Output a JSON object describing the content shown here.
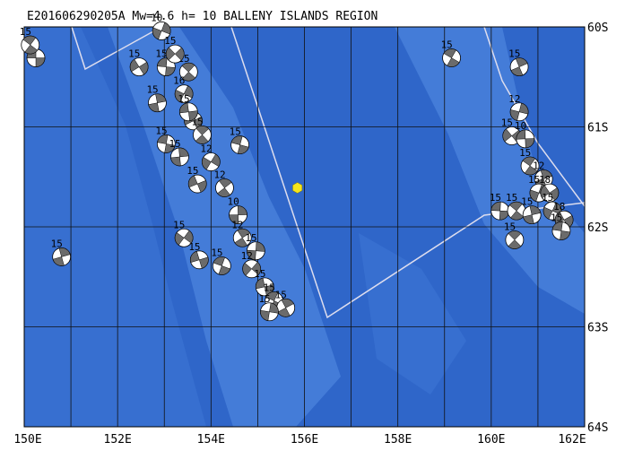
{
  "map": {
    "title": "E201606290205A Mw=4.6 h= 10 BALLENY ISLANDS REGION",
    "lonlim": [
      150,
      162
    ],
    "latlim": [
      -64,
      -60
    ],
    "xticks": [
      {
        "value": 150,
        "label": "150E"
      },
      {
        "value": 152,
        "label": "152E"
      },
      {
        "value": 154,
        "label": "154E"
      },
      {
        "value": 156,
        "label": "156E"
      },
      {
        "value": 158,
        "label": "158E"
      },
      {
        "value": 160,
        "label": "160E"
      },
      {
        "value": 162,
        "label": "162E"
      }
    ],
    "minor_xticks": [
      151,
      153,
      155,
      157,
      159,
      161
    ],
    "yticks": [
      {
        "value": -60,
        "label": "60S"
      },
      {
        "value": -61,
        "label": "61S"
      },
      {
        "value": -62,
        "label": "62S"
      },
      {
        "value": -63,
        "label": "63S"
      },
      {
        "value": -64,
        "label": "64S"
      }
    ],
    "event": {
      "lon": 155.85,
      "lat": -61.61,
      "color": "#f5e51b"
    },
    "mechanisms": [
      {
        "lon": 150.25,
        "lat": -60.31,
        "depth": 15
      },
      {
        "lon": 150.13,
        "lat": -60.18,
        "depth": 15
      },
      {
        "lon": 150.8,
        "lat": -62.3,
        "depth": 15
      },
      {
        "lon": 152.94,
        "lat": -60.04,
        "depth": 10
      },
      {
        "lon": 152.46,
        "lat": -60.4,
        "depth": 15
      },
      {
        "lon": 153.04,
        "lat": -60.4,
        "depth": 15
      },
      {
        "lon": 153.52,
        "lat": -60.45,
        "depth": 15
      },
      {
        "lon": 152.85,
        "lat": -60.76,
        "depth": 15
      },
      {
        "lon": 153.42,
        "lat": -60.67,
        "depth": 16
      },
      {
        "lon": 153.62,
        "lat": -60.94,
        "depth": 12
      },
      {
        "lon": 153.04,
        "lat": -61.17,
        "depth": 15
      },
      {
        "lon": 153.81,
        "lat": -61.08,
        "depth": 15
      },
      {
        "lon": 153.33,
        "lat": -61.3,
        "depth": 15
      },
      {
        "lon": 154.0,
        "lat": -61.35,
        "depth": 12
      },
      {
        "lon": 153.71,
        "lat": -61.57,
        "depth": 15
      },
      {
        "lon": 154.62,
        "lat": -61.18,
        "depth": 15
      },
      {
        "lon": 154.29,
        "lat": -61.61,
        "depth": 12
      },
      {
        "lon": 154.58,
        "lat": -61.88,
        "depth": 10
      },
      {
        "lon": 153.42,
        "lat": -62.11,
        "depth": 15
      },
      {
        "lon": 153.75,
        "lat": -62.33,
        "depth": 15
      },
      {
        "lon": 154.23,
        "lat": -62.39,
        "depth": 15
      },
      {
        "lon": 154.67,
        "lat": -62.11,
        "depth": 12
      },
      {
        "lon": 154.96,
        "lat": -62.24,
        "depth": 15
      },
      {
        "lon": 154.87,
        "lat": -62.42,
        "depth": 12
      },
      {
        "lon": 155.15,
        "lat": -62.6,
        "depth": 15
      },
      {
        "lon": 155.35,
        "lat": -62.74,
        "depth": 15
      },
      {
        "lon": 155.6,
        "lat": -62.81,
        "depth": 15
      },
      {
        "lon": 155.25,
        "lat": -62.85,
        "depth": 15
      },
      {
        "lon": 153.23,
        "lat": -60.27,
        "depth": 15
      },
      {
        "lon": 153.52,
        "lat": -60.85,
        "depth": 15
      },
      {
        "lon": 159.15,
        "lat": -60.31,
        "depth": 15
      },
      {
        "lon": 160.6,
        "lat": -60.4,
        "depth": 15
      },
      {
        "lon": 160.6,
        "lat": -60.85,
        "depth": 12
      },
      {
        "lon": 160.44,
        "lat": -61.09,
        "depth": 15
      },
      {
        "lon": 160.73,
        "lat": -61.12,
        "depth": 10
      },
      {
        "lon": 160.83,
        "lat": -61.39,
        "depth": 15
      },
      {
        "lon": 161.12,
        "lat": -61.52,
        "depth": 12
      },
      {
        "lon": 161.02,
        "lat": -61.66,
        "depth": 15
      },
      {
        "lon": 161.25,
        "lat": -61.66,
        "depth": 18
      },
      {
        "lon": 160.19,
        "lat": -61.84,
        "depth": 15
      },
      {
        "lon": 160.54,
        "lat": -61.84,
        "depth": 15
      },
      {
        "lon": 160.87,
        "lat": -61.88,
        "depth": 15
      },
      {
        "lon": 161.31,
        "lat": -61.84,
        "depth": 15
      },
      {
        "lon": 161.56,
        "lat": -61.93,
        "depth": 18
      },
      {
        "lon": 161.5,
        "lat": -62.04,
        "depth": 15
      },
      {
        "lon": 160.5,
        "lat": -62.13,
        "depth": 15
      }
    ]
  }
}
